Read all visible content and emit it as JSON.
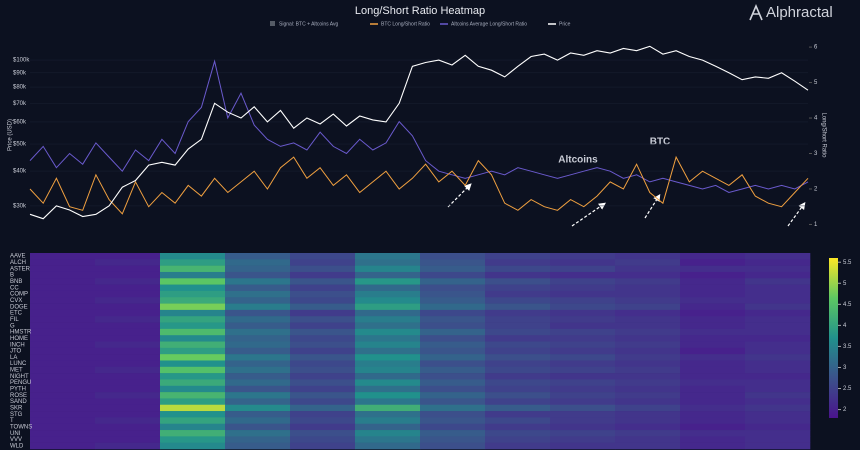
{
  "brand": "Alphractal",
  "chart_data": [
    {
      "type": "line",
      "title": "Long/Short Ratio Heatmap",
      "signal": {
        "name": "Signal: BTC + Altcoins Avg",
        "color": "#555b66"
      },
      "ylabel": "Price (USD)",
      "y2label": "Long/Short Ratio",
      "log_y": true,
      "ylim": [
        25000,
        118000
      ],
      "yticks": [
        {
          "value": 30000,
          "label": "$30k"
        },
        {
          "value": 40000,
          "label": "$40k"
        },
        {
          "value": 50000,
          "label": "$50k"
        },
        {
          "value": 60000,
          "label": "$60k"
        },
        {
          "value": 70000,
          "label": "$70k"
        },
        {
          "value": 80000,
          "label": "$80k"
        },
        {
          "value": 90000,
          "label": "$90k"
        },
        {
          "value": 100000,
          "label": "$100k"
        }
      ],
      "y2lim": [
        0.9,
        6.2
      ],
      "y2ticks": [
        1,
        2,
        3,
        4,
        5,
        6
      ],
      "annotations": [
        {
          "text": "Altcoins",
          "color": "#7b6ee0"
        },
        {
          "text": "BTC",
          "color": "#f0a040"
        }
      ],
      "series": [
        {
          "name": "BTC Long/Short Ratio",
          "color": "#f0a040",
          "axis": "y2",
          "values": [
            2.0,
            1.6,
            2.3,
            1.5,
            1.4,
            2.4,
            1.7,
            1.3,
            2.2,
            1.5,
            1.9,
            1.6,
            2.1,
            1.8,
            2.3,
            1.9,
            2.2,
            2.5,
            2.0,
            2.6,
            2.9,
            2.3,
            2.6,
            2.1,
            2.4,
            1.9,
            2.2,
            2.5,
            2.0,
            2.3,
            2.7,
            2.2,
            2.5,
            2.1,
            2.8,
            2.4,
            1.6,
            1.4,
            1.7,
            1.5,
            1.4,
            1.7,
            1.5,
            1.8,
            2.2,
            2.0,
            2.7,
            1.9,
            1.6,
            2.9,
            2.2,
            2.5,
            2.3,
            2.1,
            2.4,
            1.8,
            1.6,
            1.5,
            1.9,
            2.3
          ]
        },
        {
          "name": "Altcoins Average Long/Short Ratio",
          "color": "#6a5acd",
          "axis": "y2",
          "values": [
            2.8,
            3.2,
            2.6,
            3.0,
            2.7,
            3.3,
            2.9,
            2.5,
            3.1,
            2.8,
            3.4,
            3.0,
            3.9,
            4.3,
            5.6,
            4.0,
            4.7,
            3.8,
            3.4,
            3.2,
            3.3,
            3.1,
            3.6,
            3.2,
            3.0,
            3.4,
            3.1,
            3.3,
            3.9,
            3.5,
            2.8,
            2.5,
            2.4,
            2.3,
            2.4,
            2.5,
            2.4,
            2.6,
            2.5,
            2.4,
            2.3,
            2.4,
            2.5,
            2.6,
            2.5,
            2.3,
            2.4,
            2.2,
            2.3,
            2.2,
            2.1,
            2.0,
            2.1,
            1.9,
            2.0,
            2.1,
            2.0,
            2.1,
            2.0,
            2.2
          ]
        },
        {
          "name": "Price",
          "color": "#ffffff",
          "axis": "y",
          "values": [
            28000,
            27000,
            30000,
            29000,
            27500,
            28000,
            30000,
            35000,
            37000,
            42000,
            43000,
            42000,
            48000,
            52000,
            70000,
            65000,
            62000,
            68000,
            60000,
            66000,
            57000,
            62000,
            59000,
            64000,
            58000,
            63000,
            61000,
            60000,
            70000,
            95000,
            98000,
            100000,
            96000,
            104000,
            95000,
            92000,
            87000,
            95000,
            103000,
            105000,
            100000,
            106000,
            104000,
            108000,
            106000,
            110000,
            108000,
            112000,
            105000,
            108000,
            103000,
            100000,
            95000,
            90000,
            85000,
            87000,
            86000,
            90000,
            84000,
            78000
          ]
        }
      ]
    },
    {
      "type": "heatmap",
      "rows": [
        "AAVE",
        "ALCH",
        "ASTER",
        "B",
        "BNB",
        "CC",
        "COMP",
        "CVX",
        "DOGE",
        "ETC",
        "FIL",
        "G",
        "HMSTR",
        "HOME",
        "INCH",
        "JTO",
        "LA",
        "LUNC",
        "MET",
        "NIGHT",
        "PENGU",
        "PYTH",
        "ROSE",
        "SAND",
        "SKR",
        "STG",
        "T",
        "TOWNS",
        "UNI",
        "VVV",
        "WLD"
      ],
      "clim": [
        1.8,
        5.6
      ],
      "cticks": [
        2,
        2.5,
        3,
        3.5,
        4,
        4.5,
        5,
        5.5
      ],
      "values": [
        [
          2.0,
          2.0,
          3.6,
          2.9,
          2.6,
          3.3,
          2.7,
          2.5,
          2.4,
          2.3,
          2.1,
          2.2
        ],
        [
          2.0,
          2.1,
          3.9,
          3.1,
          2.5,
          3.2,
          2.8,
          2.4,
          2.3,
          2.4,
          2.0,
          2.1
        ],
        [
          2.0,
          2.0,
          4.3,
          3.0,
          2.7,
          3.5,
          2.9,
          2.6,
          2.5,
          2.3,
          2.2,
          2.2
        ],
        [
          2.0,
          2.0,
          3.4,
          2.8,
          2.4,
          3.0,
          2.6,
          2.3,
          2.2,
          2.2,
          2.0,
          2.1
        ],
        [
          2.0,
          2.1,
          4.6,
          3.3,
          2.8,
          3.8,
          3.0,
          2.7,
          2.5,
          2.4,
          2.1,
          2.3
        ],
        [
          2.0,
          2.0,
          3.7,
          2.9,
          2.5,
          3.1,
          2.7,
          2.5,
          2.4,
          2.3,
          2.1,
          2.2
        ],
        [
          2.0,
          2.0,
          3.9,
          3.2,
          2.7,
          3.4,
          2.8,
          2.4,
          2.3,
          2.3,
          2.1,
          2.2
        ],
        [
          2.0,
          2.1,
          4.1,
          3.0,
          2.6,
          3.6,
          2.9,
          2.6,
          2.5,
          2.4,
          2.2,
          2.2
        ],
        [
          2.0,
          2.0,
          4.8,
          3.4,
          2.9,
          3.9,
          3.1,
          2.8,
          2.6,
          2.5,
          2.1,
          2.3
        ],
        [
          2.0,
          2.0,
          3.5,
          2.8,
          2.4,
          3.1,
          2.6,
          2.4,
          2.3,
          2.2,
          2.0,
          2.1
        ],
        [
          2.0,
          2.1,
          4.0,
          3.1,
          2.7,
          3.4,
          2.8,
          2.5,
          2.4,
          2.3,
          2.1,
          2.2
        ],
        [
          2.0,
          2.0,
          3.8,
          2.9,
          2.5,
          3.2,
          2.7,
          2.5,
          2.3,
          2.3,
          2.1,
          2.2
        ],
        [
          2.0,
          2.0,
          4.4,
          3.2,
          2.8,
          3.6,
          3.0,
          2.6,
          2.5,
          2.4,
          2.2,
          2.2
        ],
        [
          2.0,
          2.0,
          3.6,
          3.0,
          2.6,
          3.3,
          2.7,
          2.4,
          2.4,
          2.3,
          2.1,
          2.1
        ],
        [
          2.0,
          2.1,
          4.2,
          3.1,
          2.7,
          3.5,
          2.9,
          2.6,
          2.5,
          2.4,
          2.1,
          2.2
        ],
        [
          2.0,
          2.0,
          3.9,
          2.9,
          2.5,
          3.2,
          2.8,
          2.5,
          2.4,
          2.3,
          2.0,
          2.2
        ],
        [
          2.0,
          2.0,
          4.7,
          3.3,
          2.8,
          3.7,
          3.0,
          2.7,
          2.6,
          2.4,
          2.2,
          2.3
        ],
        [
          2.0,
          2.0,
          3.7,
          3.0,
          2.6,
          3.4,
          2.7,
          2.5,
          2.4,
          2.3,
          2.1,
          2.2
        ],
        [
          2.0,
          2.1,
          4.5,
          3.2,
          2.7,
          3.5,
          2.9,
          2.6,
          2.5,
          2.4,
          2.1,
          2.2
        ],
        [
          2.0,
          2.0,
          3.8,
          2.9,
          2.5,
          3.1,
          2.7,
          2.4,
          2.3,
          2.3,
          2.1,
          2.1
        ],
        [
          2.0,
          2.0,
          4.1,
          3.1,
          2.7,
          3.6,
          2.9,
          2.6,
          2.5,
          2.4,
          2.2,
          2.2
        ],
        [
          2.0,
          2.0,
          3.6,
          2.8,
          2.5,
          3.2,
          2.7,
          2.5,
          2.4,
          2.3,
          2.1,
          2.2
        ],
        [
          2.0,
          2.1,
          4.3,
          3.3,
          2.8,
          3.7,
          3.0,
          2.7,
          2.5,
          2.4,
          2.1,
          2.3
        ],
        [
          2.0,
          2.0,
          3.9,
          3.0,
          2.6,
          3.3,
          2.8,
          2.5,
          2.4,
          2.3,
          2.1,
          2.2
        ],
        [
          2.0,
          2.0,
          5.2,
          3.6,
          3.0,
          4.2,
          3.2,
          2.9,
          2.7,
          2.5,
          2.2,
          2.3
        ],
        [
          2.0,
          2.0,
          3.7,
          2.9,
          2.5,
          3.2,
          2.7,
          2.4,
          2.4,
          2.3,
          2.1,
          2.2
        ],
        [
          2.0,
          2.1,
          4.0,
          3.1,
          2.6,
          3.4,
          2.8,
          2.6,
          2.4,
          2.3,
          2.1,
          2.2
        ],
        [
          2.0,
          2.0,
          3.5,
          2.8,
          2.4,
          3.0,
          2.6,
          2.4,
          2.3,
          2.2,
          2.0,
          2.1
        ],
        [
          2.0,
          2.0,
          4.2,
          3.2,
          2.7,
          3.5,
          2.9,
          2.6,
          2.5,
          2.4,
          2.2,
          2.2
        ],
        [
          2.0,
          2.0,
          3.8,
          3.0,
          2.6,
          3.3,
          2.8,
          2.5,
          2.4,
          2.3,
          2.1,
          2.2
        ],
        [
          2.0,
          2.1,
          3.6,
          2.9,
          2.5,
          3.1,
          2.7,
          2.4,
          2.3,
          2.3,
          2.1,
          2.2
        ]
      ]
    }
  ]
}
